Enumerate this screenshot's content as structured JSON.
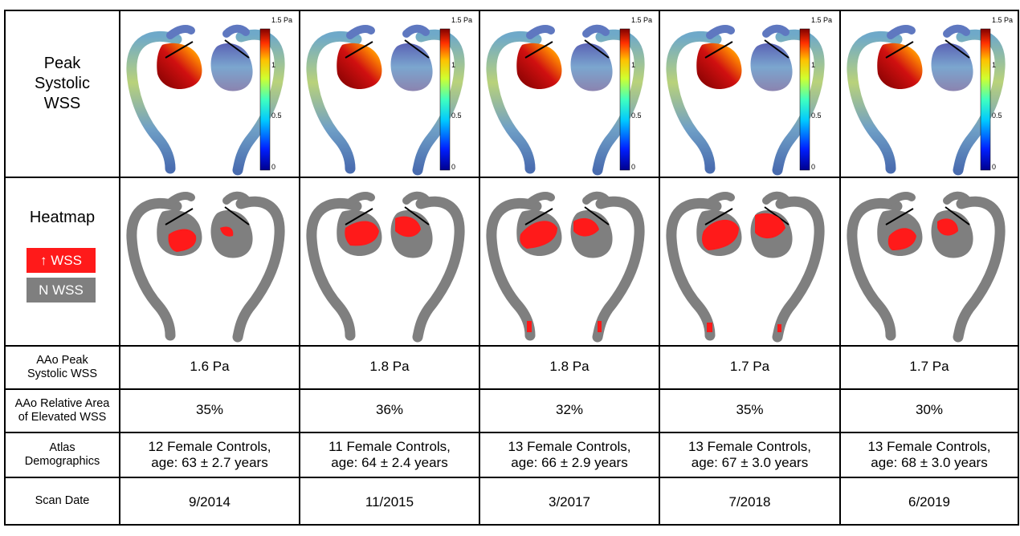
{
  "labels": {
    "peak_line1": "Peak",
    "peak_line2": "Systolic",
    "peak_line3": "WSS",
    "heatmap": "Heatmap",
    "legend_elevated": "↑ WSS",
    "legend_normal": "N WSS",
    "row3_line1": "AAo Peak",
    "row3_line2": "Systolic WSS",
    "row4_line1": "AAo Relative Area",
    "row4_line2": "of Elevated WSS",
    "row5_line1": "Atlas",
    "row5_line2": "Demographics",
    "row6": "Scan Date"
  },
  "colorbar": {
    "max": "1.5 Pa",
    "t1": "1",
    "t05": "0.5",
    "t0": "0"
  },
  "colors": {
    "elevated": "#ff1a1a",
    "normal": "#7f7f7f"
  },
  "scans": [
    {
      "peak_wss": "1.6 Pa",
      "area": "35%",
      "demo_line1": "12 Female Controls,",
      "demo_line2": "age: 63 ± 2.7 years",
      "date": "9/2014"
    },
    {
      "peak_wss": "1.8 Pa",
      "area": "36%",
      "demo_line1": "11 Female Controls,",
      "demo_line2": "age: 64 ± 2.4 years",
      "date": "11/2015"
    },
    {
      "peak_wss": "1.8 Pa",
      "area": "32%",
      "demo_line1": "13 Female Controls,",
      "demo_line2": "age: 66 ± 2.9 years",
      "date": "3/2017"
    },
    {
      "peak_wss": "1.7 Pa",
      "area": "35%",
      "demo_line1": "13 Female Controls,",
      "demo_line2": "age: 67 ± 3.0 years",
      "date": "7/2018"
    },
    {
      "peak_wss": "1.7 Pa",
      "area": "30%",
      "demo_line1": "13 Female Controls,",
      "demo_line2": "age: 68 ± 3.0 years",
      "date": "6/2019"
    }
  ]
}
